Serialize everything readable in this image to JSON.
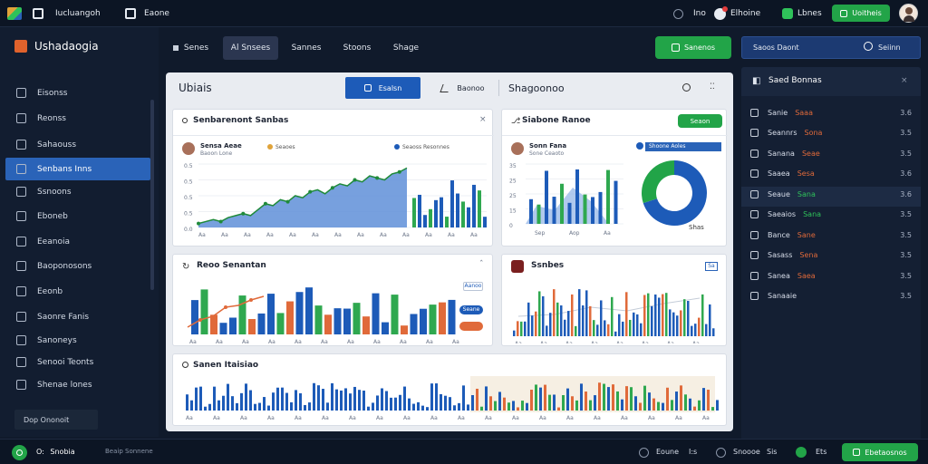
{
  "topbar": {
    "app_name": "Iucluangoh",
    "menu2": "Eaone",
    "item_a": "Ino",
    "item_b": "Elhoine",
    "item_c": "Lbnes",
    "action_btn": "Uoitheis"
  },
  "sidebar": {
    "brand": "Ushadaogia",
    "items": [
      "Eisonss",
      "Reonss",
      "Sahaouss",
      "Senbans Inns",
      "Ssnoons",
      "Eboneb",
      "Eeanoia",
      "Baoponosons",
      "Eeonb",
      "Saonre Fanis",
      "Sanoneys",
      "Senooi Teonts",
      "Shenae lones"
    ],
    "footer": "Dop Ononoit"
  },
  "topnav": {
    "tabs": [
      "Senes",
      "Al Snsees",
      "Sannes",
      "Stoons",
      "Shage"
    ],
    "cta": "Sanenos",
    "search": "Saoos Daont",
    "search_btn": "Seiinn"
  },
  "main": {
    "title": "Ubiais",
    "primary_btn": "Esalsn",
    "secondary_btn": "Baonoo",
    "section": "Shagoonoo"
  },
  "cards": {
    "c1": {
      "title": "Senbarenont Sanbas",
      "label": "Sensa Aeae",
      "sub": "Baoon Lone",
      "leg1": "Seaoes",
      "leg2": "Seaoss Resonnes",
      "ticks": [
        "0.5",
        "0.5",
        "0.5",
        "0.5",
        "0.0"
      ],
      "xt": [
        "Aa",
        "Aa",
        "Aa",
        "Aa",
        "Aa",
        "Aa",
        "Aa",
        "Aa",
        "Aa",
        "Aa",
        "Aa",
        "Aa",
        "Aa"
      ]
    },
    "c2": {
      "title": "Siabone Ranoe",
      "btn": "Seaon",
      "label": "Sonn Fana",
      "sub": "Sone Ceaoto",
      "leg1": "Shoone Aoles",
      "xt": [
        "Sep",
        "Aop",
        "Aa"
      ],
      "ticks": [
        "35",
        "25",
        "25",
        "15",
        "0"
      ],
      "pie_label": "Shas"
    },
    "c3": {
      "title": "Reoo Senantan",
      "pill1": "Aanoo",
      "pill2": "Seane",
      "xt": [
        "Aa",
        "Aa",
        "Aa",
        "Aa",
        "Aa",
        "Aa",
        "Aa",
        "Aa",
        "Aa",
        "Aa",
        "Aa"
      ]
    },
    "c4": {
      "title": "Ssnbes",
      "badge": "Sa"
    },
    "c5": {
      "title": "Sanen Itaisiao"
    }
  },
  "right_panel": {
    "title": "Saed Bonnas",
    "rows": [
      {
        "label": "Sanie",
        "value": "Saaa",
        "num": "3.6",
        "accent": "#e06a3a"
      },
      {
        "label": "Seannrs",
        "value": "Sona",
        "num": "3.5",
        "accent": "#e06a3a"
      },
      {
        "label": "Sanana",
        "value": "Seae",
        "num": "3.5",
        "accent": "#e06a3a"
      },
      {
        "label": "Saaea",
        "value": "Sesa",
        "num": "3.6",
        "accent": "#e06a3a"
      },
      {
        "label": "Seaue",
        "value": "Sana",
        "num": "3.6",
        "accent": "#2fc25a"
      },
      {
        "label": "Saeaios",
        "value": "Sana",
        "num": "3.5",
        "accent": "#2fc25a"
      },
      {
        "label": "Bance",
        "value": "Sane",
        "num": "3.5",
        "accent": "#e06a3a"
      },
      {
        "label": "Sasass",
        "value": "Sena",
        "num": "3.5",
        "accent": "#e06a3a"
      },
      {
        "label": "Sanea",
        "value": "Saea",
        "num": "3.5",
        "accent": "#e06a3a"
      },
      {
        "label": "Sanaaie",
        "value": "",
        "num": "3.5",
        "accent": "#e06a3a"
      }
    ]
  },
  "status": {
    "left": "Snobia",
    "left_sub": "Beaip Sonnene",
    "r1": "Eoune",
    "r1n": "I:s",
    "r2": "Snoooe",
    "r2n": "Sis",
    "r3": "Ets",
    "btn": "Ebetaosnos"
  },
  "colors": {
    "accent": "#2a63b8",
    "green": "#22a448",
    "orange": "#e06a3a"
  },
  "chart_data": [
    {
      "type": "area",
      "series": [
        {
          "values": [
            2,
            3,
            4,
            3,
            5,
            6,
            7,
            6,
            9,
            12,
            11,
            14,
            13,
            16,
            15,
            18,
            19,
            17,
            20,
            22,
            21,
            24,
            23,
            26,
            25,
            24,
            27,
            28,
            30
          ]
        }
      ]
    },
    {
      "type": "pie",
      "values": [
        70,
        30
      ],
      "colors": [
        "#1d5bb8",
        "#22a448"
      ]
    }
  ]
}
